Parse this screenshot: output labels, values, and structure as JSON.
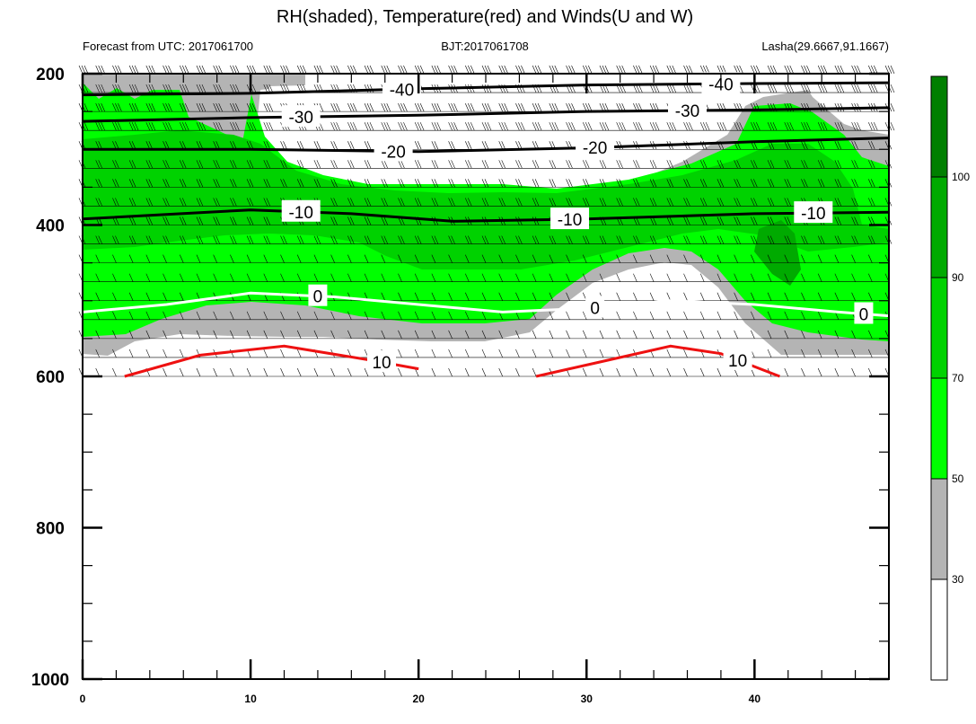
{
  "chart_data": {
    "type": "contour",
    "title": "RH(shaded), Temperature(red) and Winds(U and W)",
    "subtitles": {
      "left": "Forecast from UTC: 2017061700",
      "center": "BJT:2017061708",
      "right": "Lasha(29.6667,91.1667)"
    },
    "x_ticks": [
      0,
      10,
      20,
      30,
      40
    ],
    "xlim": [
      0,
      48
    ],
    "y_ticks": [
      200,
      400,
      600,
      800,
      1000
    ],
    "ylim": [
      1000,
      200
    ],
    "colorbar": {
      "levels": [
        30,
        50,
        70,
        90,
        100
      ],
      "colors": [
        "#ffffff",
        "#b4b4b4",
        "#00ff00",
        "#00d200",
        "#00aa00",
        "#007f00"
      ]
    },
    "colors": {
      "temp_cold": "#000000",
      "temp_zero": "#ffffff",
      "temp_warm": "#ee1111"
    },
    "temperature_contours": [
      {
        "label": "-40",
        "points": [
          [
            0,
            228
          ],
          [
            10,
            226
          ],
          [
            20,
            220
          ],
          [
            30,
            215
          ],
          [
            40,
            213
          ],
          [
            48,
            212
          ]
        ],
        "label_x": [
          19,
          38
        ]
      },
      {
        "label": "-30",
        "points": [
          [
            0,
            263
          ],
          [
            10,
            258
          ],
          [
            20,
            255
          ],
          [
            30,
            250
          ],
          [
            40,
            248
          ],
          [
            48,
            245
          ]
        ],
        "label_x": [
          13,
          36
        ]
      },
      {
        "label": "-20",
        "points": [
          [
            0,
            300
          ],
          [
            10,
            300
          ],
          [
            20,
            303
          ],
          [
            30,
            298
          ],
          [
            40,
            290
          ],
          [
            48,
            285
          ]
        ],
        "label_x": [
          18.5,
          30.5
        ]
      },
      {
        "label": "-10",
        "points": [
          [
            0,
            392
          ],
          [
            10,
            380
          ],
          [
            16,
            385
          ],
          [
            22,
            395
          ],
          [
            30,
            392
          ],
          [
            40,
            385
          ],
          [
            48,
            383
          ]
        ],
        "label_x": [
          13,
          29,
          43.5
        ]
      },
      {
        "label": "0",
        "points": [
          [
            0,
            515
          ],
          [
            5,
            505
          ],
          [
            10,
            490
          ],
          [
            15,
            495
          ],
          [
            20,
            505
          ],
          [
            25,
            515
          ],
          [
            30,
            510
          ],
          [
            35,
            500
          ],
          [
            40,
            505
          ],
          [
            45,
            515
          ],
          [
            48,
            520
          ]
        ],
        "label_x": [
          14,
          30.5,
          46.5
        ]
      },
      {
        "label": "10",
        "points": [
          [
            2.5,
            600
          ],
          [
            7,
            572
          ],
          [
            12,
            560
          ],
          [
            17,
            578
          ],
          [
            20,
            590
          ]
        ],
        "label_x": [
          17.8
        ]
      },
      {
        "label": "10",
        "points": [
          [
            27,
            600
          ],
          [
            31,
            580
          ],
          [
            35,
            560
          ],
          [
            38,
            570
          ],
          [
            41.5,
            600
          ]
        ],
        "label_x": [
          39
        ]
      }
    ]
  }
}
